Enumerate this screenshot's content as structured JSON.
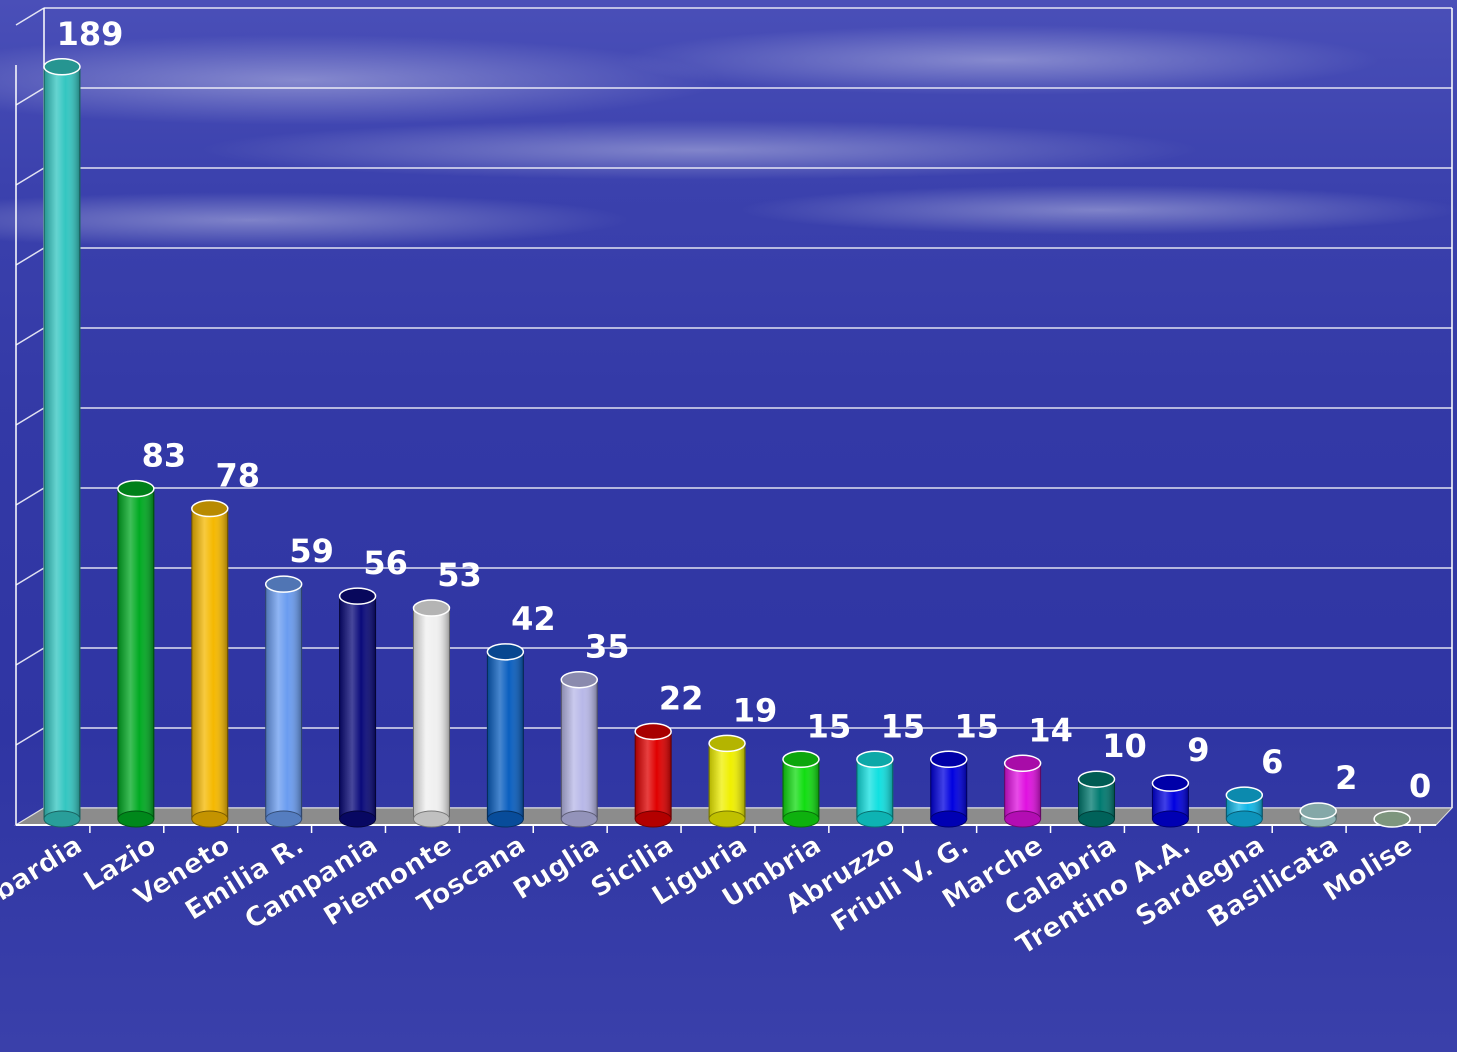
{
  "chart_data": {
    "type": "bar",
    "title": "",
    "xlabel": "",
    "ylabel": "",
    "categories": [
      "Lombardia",
      "Lazio",
      "Veneto",
      "Emilia R.",
      "Campania",
      "Piemonte",
      "Toscana",
      "Puglia",
      "Sicilia",
      "Liguria",
      "Umbria",
      "Abruzzo",
      "Friuli V. G.",
      "Marche",
      "Calabria",
      "Trentino A.A.",
      "Sardegna",
      "Basilicata",
      "Molise"
    ],
    "values": [
      189,
      83,
      78,
      59,
      56,
      53,
      42,
      35,
      22,
      19,
      15,
      15,
      15,
      14,
      10,
      9,
      6,
      2,
      0
    ],
    "colors": [
      "#33c6c1",
      "#00aa22",
      "#f5b800",
      "#6a9cf0",
      "#0a0a7a",
      "#f0f0f0",
      "#0a5fc0",
      "#b8b8e8",
      "#e00000",
      "#f0f000",
      "#11dd11",
      "#11e0e0",
      "#0000e0",
      "#e010e0",
      "#007a70",
      "#0000e0",
      "#10b8e8",
      "#b0e0e0",
      "#a8c8a8"
    ],
    "ylim": [
      0,
      190
    ],
    "grid": true,
    "legend": "none",
    "bar_style": "cylinder-3d"
  },
  "background": {
    "sky_color": "#4a4fb8",
    "sea_color": "#2f35a3"
  }
}
